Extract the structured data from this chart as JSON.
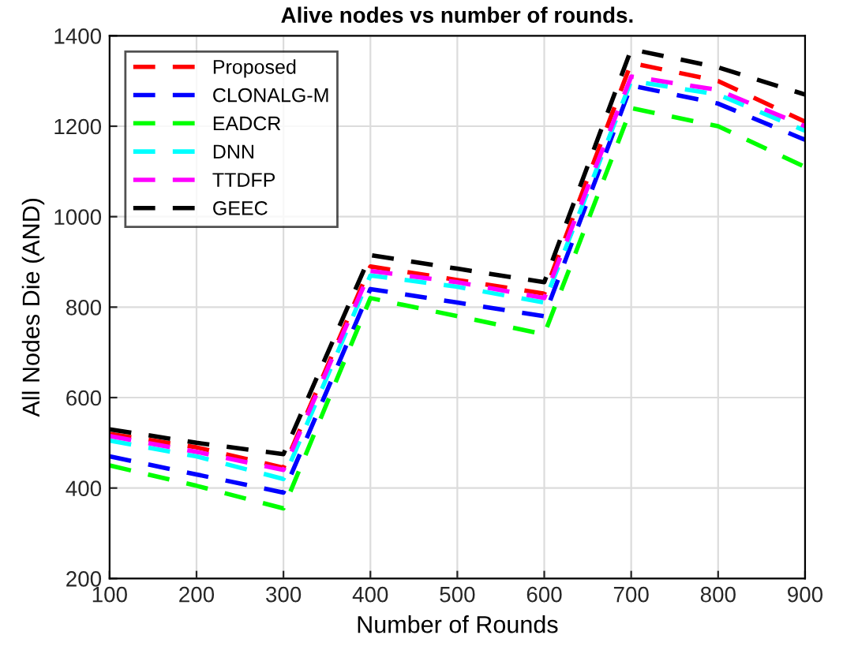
{
  "chart_data": {
    "type": "line",
    "title": "Alive nodes vs number of rounds.",
    "xlabel": "Number of Rounds",
    "ylabel": "All Nodes Die (AND)",
    "x": [
      100,
      200,
      300,
      400,
      500,
      600,
      700,
      800,
      900
    ],
    "series": [
      {
        "name": "Proposed",
        "color": "#ff0000",
        "values": [
          520,
          490,
          445,
          890,
          860,
          830,
          1340,
          1300,
          1210
        ]
      },
      {
        "name": "CLONALG-M",
        "color": "#0000ff",
        "values": [
          470,
          430,
          390,
          840,
          810,
          780,
          1290,
          1250,
          1170
        ]
      },
      {
        "name": "EADCR",
        "color": "#00ff00",
        "values": [
          450,
          405,
          355,
          820,
          780,
          740,
          1240,
          1200,
          1110
        ]
      },
      {
        "name": "DNN",
        "color": "#00ffff",
        "values": [
          505,
          470,
          420,
          870,
          845,
          810,
          1300,
          1270,
          1190
        ]
      },
      {
        "name": "TTDFP",
        "color": "#ff00ff",
        "values": [
          515,
          480,
          440,
          880,
          855,
          820,
          1310,
          1280,
          1200
        ]
      },
      {
        "name": "GEEC",
        "color": "#000000",
        "values": [
          530,
          500,
          475,
          915,
          885,
          855,
          1370,
          1330,
          1270
        ]
      }
    ],
    "xlim": [
      100,
      900
    ],
    "ylim": [
      200,
      1400
    ],
    "xticks": [
      100,
      200,
      300,
      400,
      500,
      600,
      700,
      800,
      900
    ],
    "yticks": [
      200,
      400,
      600,
      800,
      1000,
      1200,
      1400
    ],
    "grid": true,
    "legend": "top left",
    "marker": "none",
    "line_style": "dashed"
  }
}
